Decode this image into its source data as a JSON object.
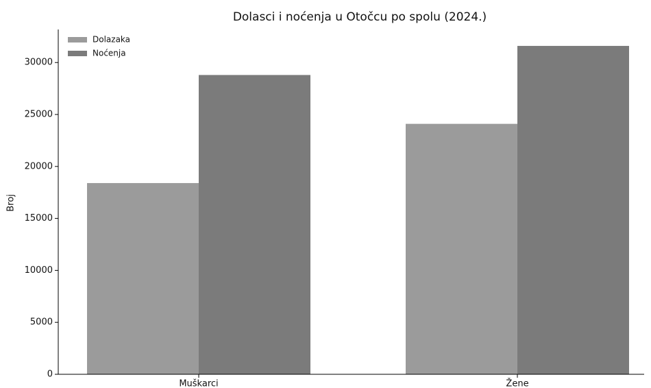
{
  "chart_data": {
    "type": "bar",
    "title": "Dolasci i noćenja u Otočcu po spolu (2024.)",
    "y_label": "Broj",
    "categories": [
      "Muškarci",
      "Žene"
    ],
    "series": [
      {
        "name": "Dolazaka",
        "color": "#9b9b9b",
        "values": [
          18400,
          24100
        ]
      },
      {
        "name": "Noćenja",
        "color": "#7b7b7b",
        "values": [
          28800,
          31600
        ]
      }
    ],
    "ylim": [
      0,
      33180
    ],
    "yticks": [
      0,
      5000,
      10000,
      15000,
      20000,
      25000,
      30000
    ],
    "legend": "upper left"
  }
}
